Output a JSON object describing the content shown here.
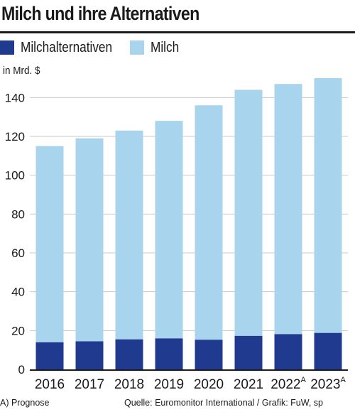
{
  "chart_data": {
    "type": "bar",
    "stacked": true,
    "title": "Milch und ihre Alternativen",
    "unit_label": "in Mrd. $",
    "categories": [
      "2016",
      "2017",
      "2018",
      "2019",
      "2020",
      "2021",
      "2022",
      "2023"
    ],
    "category_superscripts": [
      "",
      "",
      "",
      "",
      "",
      "",
      "A",
      "A"
    ],
    "series": [
      {
        "name": "Milchalternativen",
        "color": "#1f3a8f",
        "values": [
          14,
          14.5,
          15.5,
          16,
          15.3,
          17.3,
          18.2,
          18.8
        ]
      },
      {
        "name": "Milch",
        "color": "#a9d4ee",
        "values": [
          101,
          104.5,
          107.5,
          112,
          120.7,
          126.7,
          128.8,
          131.2
        ]
      }
    ],
    "totals": [
      115,
      119,
      123,
      128,
      136,
      144,
      147,
      150
    ],
    "yticks": [
      0,
      20,
      40,
      60,
      80,
      100,
      120,
      140
    ],
    "ylim": [
      0,
      150
    ],
    "grid": true,
    "legend_position": "top-left"
  },
  "footnote": "A) Prognose",
  "source": "Quelle: Euromonitor International / Grafik: FuW, sp"
}
